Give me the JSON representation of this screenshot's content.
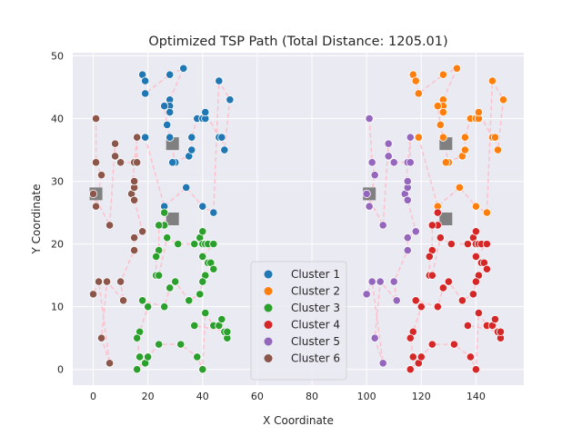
{
  "chart_data": {
    "type": "scatter",
    "title": "Optimized TSP Path (Total Distance: 1205.01)",
    "xlabel": "X Coordinate",
    "ylabel": "Y Coordinate",
    "xlim": [
      -7.5,
      157.5
    ],
    "ylim": [
      -2.5,
      50.5
    ],
    "xticks": [
      0,
      20,
      40,
      60,
      80,
      100,
      120,
      140
    ],
    "yticks": [
      0,
      10,
      20,
      30,
      40,
      50
    ],
    "grid": true,
    "legend_position": "lower-center",
    "path_color": "#ffc0cb",
    "center_color": "#808080",
    "series": [
      {
        "name": "Cluster 1",
        "color": "#1f77b4",
        "points": [
          [
            18,
            47
          ],
          [
            19,
            46
          ],
          [
            19,
            44
          ],
          [
            28,
            47
          ],
          [
            33,
            48
          ],
          [
            27,
            42
          ],
          [
            28,
            43
          ],
          [
            28,
            42
          ],
          [
            28,
            41
          ],
          [
            26,
            42
          ],
          [
            27,
            39
          ],
          [
            28,
            37
          ],
          [
            30,
            33
          ],
          [
            29,
            33
          ],
          [
            35,
            34
          ],
          [
            36,
            35
          ],
          [
            36,
            37
          ],
          [
            38,
            40
          ],
          [
            40,
            40
          ],
          [
            41,
            40
          ],
          [
            41,
            41
          ],
          [
            46,
            37
          ],
          [
            47,
            37
          ],
          [
            48,
            35
          ],
          [
            50,
            43
          ],
          [
            46,
            46
          ],
          [
            44,
            25
          ],
          [
            40,
            26
          ],
          [
            34,
            29
          ],
          [
            26,
            26
          ],
          [
            19,
            37
          ]
        ]
      },
      {
        "name": "Cluster 2",
        "color": "#ff7f0e",
        "points": [
          [
            117,
            47
          ],
          [
            118,
            46
          ],
          [
            119,
            44
          ],
          [
            128,
            47
          ],
          [
            133,
            48
          ],
          [
            127,
            42
          ],
          [
            128,
            43
          ],
          [
            128,
            42
          ],
          [
            128,
            41
          ],
          [
            126,
            42
          ],
          [
            127,
            39
          ],
          [
            128,
            37
          ],
          [
            130,
            33
          ],
          [
            129,
            33
          ],
          [
            135,
            34
          ],
          [
            136,
            35
          ],
          [
            136,
            37
          ],
          [
            138,
            40
          ],
          [
            140,
            40
          ],
          [
            141,
            40
          ],
          [
            141,
            41
          ],
          [
            146,
            37
          ],
          [
            147,
            37
          ],
          [
            148,
            35
          ],
          [
            150,
            43
          ],
          [
            146,
            46
          ],
          [
            144,
            25
          ],
          [
            140,
            26
          ],
          [
            134,
            29
          ],
          [
            126,
            26
          ],
          [
            119,
            37
          ]
        ]
      },
      {
        "name": "Cluster 3",
        "color": "#2ca02c",
        "points": [
          [
            26,
            25
          ],
          [
            26,
            23
          ],
          [
            24,
            23
          ],
          [
            24,
            19
          ],
          [
            23,
            18
          ],
          [
            23,
            15
          ],
          [
            24,
            15
          ],
          [
            27,
            21
          ],
          [
            31,
            20
          ],
          [
            37,
            20
          ],
          [
            39,
            21
          ],
          [
            40,
            22
          ],
          [
            40,
            20
          ],
          [
            41,
            20
          ],
          [
            42,
            20
          ],
          [
            44,
            20
          ],
          [
            40,
            18
          ],
          [
            42,
            17
          ],
          [
            43,
            17
          ],
          [
            44,
            16
          ],
          [
            41,
            15
          ],
          [
            40,
            14
          ],
          [
            39,
            12
          ],
          [
            35,
            11
          ],
          [
            30,
            14
          ],
          [
            28,
            13
          ],
          [
            26,
            10
          ],
          [
            18,
            11
          ],
          [
            20,
            10
          ],
          [
            17,
            6
          ],
          [
            16,
            5
          ],
          [
            17,
            2
          ],
          [
            19,
            1
          ],
          [
            20,
            2
          ],
          [
            16,
            0
          ],
          [
            24,
            4
          ],
          [
            32,
            4
          ],
          [
            38,
            2
          ],
          [
            40,
            0
          ],
          [
            41,
            9
          ],
          [
            44,
            7
          ],
          [
            46,
            7
          ],
          [
            47,
            8
          ],
          [
            48,
            6
          ],
          [
            49,
            5
          ],
          [
            49,
            6
          ],
          [
            37,
            7
          ]
        ]
      },
      {
        "name": "Cluster 4",
        "color": "#d62728",
        "points": [
          [
            126,
            25
          ],
          [
            126,
            23
          ],
          [
            124,
            23
          ],
          [
            124,
            19
          ],
          [
            123,
            18
          ],
          [
            123,
            15
          ],
          [
            124,
            15
          ],
          [
            127,
            21
          ],
          [
            131,
            20
          ],
          [
            137,
            20
          ],
          [
            139,
            21
          ],
          [
            140,
            22
          ],
          [
            140,
            20
          ],
          [
            141,
            20
          ],
          [
            142,
            20
          ],
          [
            144,
            20
          ],
          [
            140,
            18
          ],
          [
            142,
            17
          ],
          [
            143,
            17
          ],
          [
            144,
            16
          ],
          [
            141,
            15
          ],
          [
            140,
            14
          ],
          [
            139,
            12
          ],
          [
            135,
            11
          ],
          [
            130,
            14
          ],
          [
            128,
            13
          ],
          [
            126,
            10
          ],
          [
            118,
            11
          ],
          [
            120,
            10
          ],
          [
            117,
            6
          ],
          [
            116,
            5
          ],
          [
            117,
            2
          ],
          [
            119,
            1
          ],
          [
            120,
            2
          ],
          [
            116,
            0
          ],
          [
            124,
            4
          ],
          [
            132,
            4
          ],
          [
            138,
            2
          ],
          [
            140,
            0
          ],
          [
            141,
            9
          ],
          [
            144,
            7
          ],
          [
            146,
            7
          ],
          [
            147,
            8
          ],
          [
            148,
            6
          ],
          [
            149,
            5
          ],
          [
            149,
            6
          ],
          [
            137,
            7
          ]
        ]
      },
      {
        "name": "Cluster 5",
        "color": "#9467bd",
        "points": [
          [
            101,
            40
          ],
          [
            102,
            33
          ],
          [
            103,
            31
          ],
          [
            101,
            26
          ],
          [
            100,
            28
          ],
          [
            106,
            23
          ],
          [
            108,
            36
          ],
          [
            108,
            34
          ],
          [
            110,
            33
          ],
          [
            115,
            33
          ],
          [
            116,
            33
          ],
          [
            116,
            37
          ],
          [
            114,
            28
          ],
          [
            115,
            29
          ],
          [
            115,
            30
          ],
          [
            115,
            27
          ],
          [
            118,
            22
          ],
          [
            115,
            21
          ],
          [
            115,
            19
          ],
          [
            110,
            14
          ],
          [
            111,
            11
          ],
          [
            105,
            14
          ],
          [
            103,
            5
          ],
          [
            106,
            1
          ],
          [
            102,
            14
          ],
          [
            100,
            12
          ]
        ]
      },
      {
        "name": "Cluster 6",
        "color": "#8c564b",
        "points": [
          [
            1,
            40
          ],
          [
            1,
            33
          ],
          [
            3,
            31
          ],
          [
            1,
            26
          ],
          [
            0,
            28
          ],
          [
            6,
            23
          ],
          [
            8,
            36
          ],
          [
            8,
            34
          ],
          [
            10,
            33
          ],
          [
            15,
            33
          ],
          [
            16,
            33
          ],
          [
            16,
            37
          ],
          [
            14,
            28
          ],
          [
            15,
            29
          ],
          [
            15,
            30
          ],
          [
            15,
            27
          ],
          [
            18,
            22
          ],
          [
            15,
            21
          ],
          [
            15,
            19
          ],
          [
            10,
            14
          ],
          [
            11,
            11
          ],
          [
            5,
            14
          ],
          [
            3,
            5
          ],
          [
            6,
            1
          ],
          [
            2,
            14
          ],
          [
            0,
            12
          ]
        ]
      }
    ],
    "centers": [
      [
        29,
        36
      ],
      [
        129,
        36
      ],
      [
        29,
        24
      ],
      [
        129,
        24
      ],
      [
        1,
        28
      ],
      [
        101,
        28
      ]
    ]
  }
}
